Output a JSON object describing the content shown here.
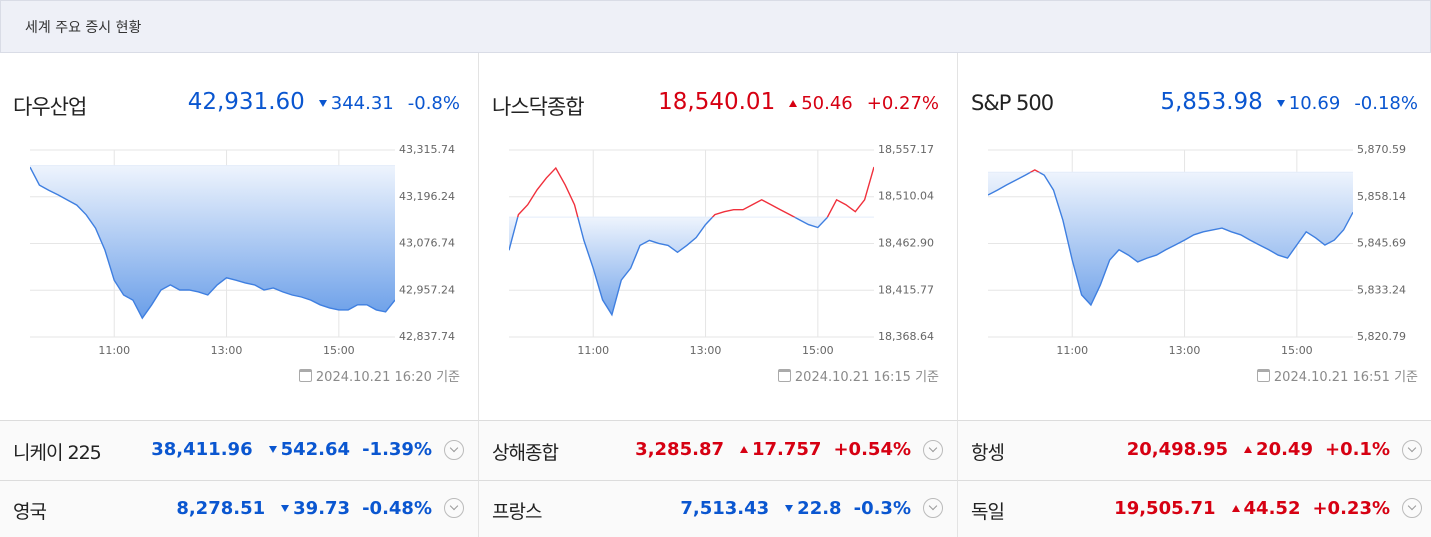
{
  "header": {
    "title": "세계 주요 증시 현황"
  },
  "panels": [
    {
      "name": "다우산업",
      "price": "42,931.60",
      "change": "344.31",
      "change_pct": "-0.8%",
      "direction": "down",
      "timestamp": "2024.10.21 16:20 기준"
    },
    {
      "name": "나스닥종합",
      "price": "18,540.01",
      "change": "50.46",
      "change_pct": "+0.27%",
      "direction": "up",
      "timestamp": "2024.10.21 16:15 기준"
    },
    {
      "name": "S&P 500",
      "price": "5,853.98",
      "change": "10.69",
      "change_pct": "-0.18%",
      "direction": "down",
      "timestamp": "2024.10.21 16:51 기준"
    }
  ],
  "chart_data": [
    {
      "type": "line",
      "x": [
        "09:30",
        "09:40",
        "09:50",
        "10:00",
        "10:10",
        "10:20",
        "10:30",
        "10:40",
        "10:50",
        "11:00",
        "11:10",
        "11:20",
        "11:30",
        "11:40",
        "11:50",
        "12:00",
        "12:10",
        "12:20",
        "12:30",
        "12:40",
        "12:50",
        "13:00",
        "13:10",
        "13:20",
        "13:30",
        "13:40",
        "13:50",
        "14:00",
        "14:10",
        "14:20",
        "14:30",
        "14:40",
        "14:50",
        "15:00",
        "15:10",
        "15:20",
        "15:30",
        "15:40",
        "15:50",
        "16:00"
      ],
      "values": [
        43272,
        43226,
        43213,
        43201,
        43188,
        43175,
        43150,
        43116,
        43060,
        42983,
        42945,
        42932,
        42886,
        42920,
        42958,
        42971,
        42958,
        42958,
        42953,
        42945,
        42971,
        42989,
        42983,
        42976,
        42971,
        42958,
        42963,
        42953,
        42945,
        42940,
        42932,
        42920,
        42912,
        42907,
        42907,
        42920,
        42920,
        42907,
        42902,
        42932
      ],
      "baseline": 43275.91,
      "up_color": "#f0303c",
      "down_color": "#3f7fe0",
      "ylim": [
        42837.74,
        43315.74
      ],
      "yticks": [
        {
          "value": 42837.74,
          "label": "42,837.74"
        },
        {
          "value": 42957.24,
          "label": "42,957.24"
        },
        {
          "value": 43076.74,
          "label": "43,076.74"
        },
        {
          "value": 43196.24,
          "label": "43,196.24"
        },
        {
          "value": 43315.74,
          "label": "43,315.74"
        }
      ],
      "xticks": [
        "11:00",
        "13:00",
        "15:00"
      ],
      "grid": true
    },
    {
      "type": "line",
      "x": [
        "09:30",
        "09:40",
        "09:50",
        "10:00",
        "10:10",
        "10:20",
        "10:30",
        "10:40",
        "10:50",
        "11:00",
        "11:10",
        "11:20",
        "11:30",
        "11:40",
        "11:50",
        "12:00",
        "12:10",
        "12:20",
        "12:30",
        "12:40",
        "12:50",
        "13:00",
        "13:10",
        "13:20",
        "13:30",
        "13:40",
        "13:50",
        "14:00",
        "14:10",
        "14:20",
        "14:30",
        "14:40",
        "14:50",
        "15:00",
        "15:10",
        "15:20",
        "15:30",
        "15:40",
        "15:50",
        "16:00"
      ],
      "values": [
        18456,
        18492,
        18502,
        18517,
        18529,
        18539,
        18522,
        18502,
        18466,
        18438,
        18406,
        18391,
        18426,
        18438,
        18461,
        18466,
        18463,
        18461,
        18454,
        18461,
        18469,
        18482,
        18492,
        18495,
        18497,
        18497,
        18502,
        18507,
        18502,
        18497,
        18492,
        18487,
        18482,
        18479,
        18489,
        18507,
        18502,
        18495,
        18507,
        18540
      ],
      "baseline": 18489.55,
      "up_color": "#f0303c",
      "down_color": "#3f7fe0",
      "ylim": [
        18368.64,
        18557.17
      ],
      "yticks": [
        {
          "value": 18368.64,
          "label": "18,368.64"
        },
        {
          "value": 18415.77,
          "label": "18,415.77"
        },
        {
          "value": 18462.9,
          "label": "18,462.90"
        },
        {
          "value": 18510.04,
          "label": "18,510.04"
        },
        {
          "value": 18557.17,
          "label": "18,557.17"
        }
      ],
      "xticks": [
        "11:00",
        "13:00",
        "15:00"
      ],
      "grid": true
    },
    {
      "type": "line",
      "x": [
        "09:30",
        "09:40",
        "09:50",
        "10:00",
        "10:10",
        "10:20",
        "10:30",
        "10:40",
        "10:50",
        "11:00",
        "11:10",
        "11:20",
        "11:30",
        "11:40",
        "11:50",
        "12:00",
        "12:10",
        "12:20",
        "12:30",
        "12:40",
        "12:50",
        "13:00",
        "13:10",
        "13:20",
        "13:30",
        "13:40",
        "13:50",
        "14:00",
        "14:10",
        "14:20",
        "14:30",
        "14:40",
        "14:50",
        "15:00",
        "15:10",
        "15:20",
        "15:30",
        "15:40",
        "15:50",
        "16:00"
      ],
      "values": [
        5858.6,
        5859.9,
        5861.3,
        5862.6,
        5863.9,
        5865.3,
        5863.9,
        5859.9,
        5851.9,
        5841.3,
        5832.0,
        5829.3,
        5834.6,
        5841.3,
        5844.0,
        5842.6,
        5840.8,
        5841.8,
        5842.6,
        5844.0,
        5845.3,
        5846.6,
        5848.0,
        5848.8,
        5849.3,
        5849.8,
        5848.8,
        5848.0,
        5846.6,
        5845.3,
        5844.0,
        5842.6,
        5841.8,
        5845.3,
        5848.8,
        5847.2,
        5845.3,
        5846.6,
        5849.3,
        5854.0
      ],
      "baseline": 5864.67,
      "up_color": "#f0303c",
      "down_color": "#3f7fe0",
      "ylim": [
        5820.79,
        5870.59
      ],
      "yticks": [
        {
          "value": 5820.79,
          "label": "5,820.79"
        },
        {
          "value": 5833.24,
          "label": "5,833.24"
        },
        {
          "value": 5845.69,
          "label": "5,845.69"
        },
        {
          "value": 5858.14,
          "label": "5,858.14"
        },
        {
          "value": 5870.59,
          "label": "5,870.59"
        }
      ],
      "xticks": [
        "11:00",
        "13:00",
        "15:00"
      ],
      "grid": true
    }
  ],
  "others": [
    {
      "name": "니케이 225",
      "price": "38,411.96",
      "change": "542.64",
      "change_pct": "-1.39%",
      "direction": "down"
    },
    {
      "name": "상해종합",
      "price": "3,285.87",
      "change": "17.757",
      "change_pct": "+0.54%",
      "direction": "up"
    },
    {
      "name": "항셍",
      "price": "20,498.95",
      "change": "20.49",
      "change_pct": "+0.1%",
      "direction": "up"
    },
    {
      "name": "영국",
      "price": "8,278.51",
      "change": "39.73",
      "change_pct": "-0.48%",
      "direction": "down"
    },
    {
      "name": "프랑스",
      "price": "7,513.43",
      "change": "22.8",
      "change_pct": "-0.3%",
      "direction": "down"
    },
    {
      "name": "독일",
      "price": "19,505.71",
      "change": "44.52",
      "change_pct": "+0.23%",
      "direction": "up"
    }
  ]
}
